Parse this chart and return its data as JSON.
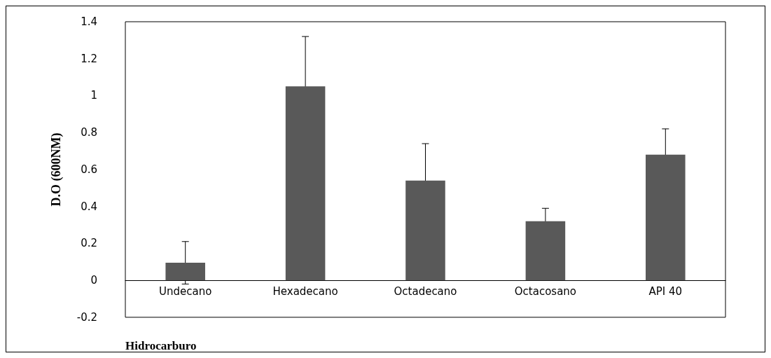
{
  "chart_data": {
    "type": "bar",
    "xlabel": "Hidrocarburo",
    "ylabel": "D.O (600NM)",
    "categories": [
      "Undecano",
      "Hexadecano",
      "Octadecano",
      "Octacosano",
      "API 40"
    ],
    "values": [
      0.095,
      1.05,
      0.54,
      0.32,
      0.68
    ],
    "errors": [
      0.115,
      0.27,
      0.2,
      0.07,
      0.14
    ],
    "color": "#595959",
    "ylim": [
      -0.2,
      1.4
    ],
    "yticks": [
      -0.2,
      0,
      0.2,
      0.4,
      0.6,
      0.8,
      1,
      1.2,
      1.4
    ],
    "grid": false
  }
}
